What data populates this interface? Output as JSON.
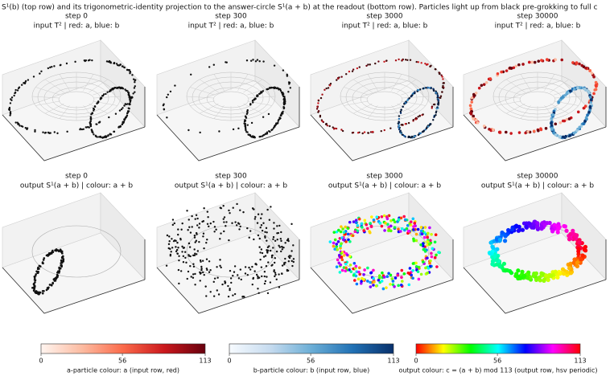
{
  "title": "S¹(b) (top row) and its trigonometric-identity projection to the answer-circle S¹(a + b) at the readout (bottom row). Particles light up from black pre-grokking to full c",
  "panels": [
    {
      "step": "step 0",
      "subtitle": "input T² | red: a, blue: b"
    },
    {
      "step": "step 300",
      "subtitle": "input T² | red: a, blue: b"
    },
    {
      "step": "step 3000",
      "subtitle": "input T² | red: a, blue: b"
    },
    {
      "step": "step 30000",
      "subtitle": "input T² | red: a, blue: b"
    },
    {
      "step": "step 0",
      "subtitle": "output S¹(a + b) | colour: a + b"
    },
    {
      "step": "step 300",
      "subtitle": "output S¹(a + b) | colour: a + b"
    },
    {
      "step": "step 3000",
      "subtitle": "output S¹(a + b) | colour: a + b"
    },
    {
      "step": "step 30000",
      "subtitle": "output S¹(a + b) | colour: a + b"
    }
  ],
  "colorbars": [
    {
      "label": "a-particle colour: a (input row, red)",
      "lim": [
        0,
        113
      ],
      "ticks": [
        0,
        56,
        113
      ],
      "colors": [
        "#fff5f0",
        "#fcbba1",
        "#fb6a4a",
        "#cb181d",
        "#67000d"
      ]
    },
    {
      "label": "b-particle colour: b (input row, blue)",
      "lim": [
        0,
        113
      ],
      "ticks": [
        0,
        56,
        113
      ],
      "colors": [
        "#f7fbff",
        "#c6dbef",
        "#6baed6",
        "#2171b5",
        "#08306b"
      ]
    },
    {
      "label": "output colour: c = (a + b) mod 113 (output row, hsv periodic)",
      "lim": [
        0,
        113
      ],
      "ticks": [
        0,
        56,
        113
      ],
      "colors": [
        "#ff0000",
        "#ffff00",
        "#00ff00",
        "#00ffff",
        "#0000ff",
        "#ff00ff",
        "#ff0000"
      ]
    }
  ]
}
